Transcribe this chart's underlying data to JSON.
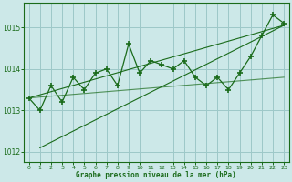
{
  "title": "Graphe pression niveau de la mer (hPa)",
  "bg_color": "#cce8e8",
  "plot_bg_color": "#cce8e8",
  "line_color": "#1a6b1a",
  "grid_color": "#9dc8c8",
  "tick_label_color": "#1a6b1a",
  "xlabel_color": "#1a6b1a",
  "hours": [
    0,
    1,
    2,
    3,
    4,
    5,
    6,
    7,
    8,
    9,
    10,
    11,
    12,
    13,
    14,
    15,
    16,
    17,
    18,
    19,
    20,
    21,
    22,
    23
  ],
  "pressure_main": [
    1013.3,
    1013.0,
    1013.6,
    1013.2,
    1013.8,
    1013.5,
    1013.9,
    1014.0,
    1013.6,
    1014.6,
    1013.9,
    1014.2,
    1014.1,
    1014.0,
    1014.2,
    1013.8,
    1013.6,
    1013.8,
    1013.5,
    1013.9,
    1014.3,
    1014.8,
    1015.3,
    1015.1
  ],
  "trend_line1_x": [
    0,
    23
  ],
  "trend_line1_y": [
    1013.3,
    1015.05
  ],
  "trend_line2_x": [
    1,
    23
  ],
  "trend_line2_y": [
    1012.1,
    1015.05
  ],
  "trend_line3_x": [
    0,
    23
  ],
  "trend_line3_y": [
    1013.3,
    1013.8
  ],
  "ylim": [
    1011.75,
    1015.6
  ],
  "yticks": [
    1012,
    1013,
    1014,
    1015
  ],
  "xticks": [
    0,
    1,
    2,
    3,
    4,
    5,
    6,
    7,
    8,
    9,
    10,
    11,
    12,
    13,
    14,
    15,
    16,
    17,
    18,
    19,
    20,
    21,
    22,
    23
  ]
}
